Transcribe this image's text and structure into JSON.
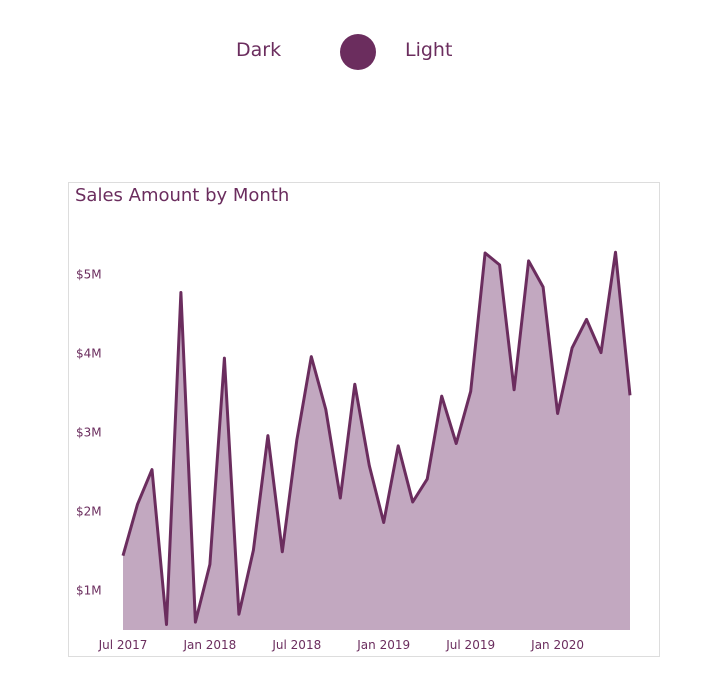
{
  "toggle": {
    "left_label": "Dark",
    "right_label": "Light",
    "state": "light",
    "accent_color": "#6b2d5e"
  },
  "chart_data": {
    "type": "area",
    "title": "Sales Amount by Month",
    "xlabel": "",
    "ylabel": "",
    "colors": {
      "line": "#6b2d5e",
      "fill": "#c2a8c0"
    },
    "grid": false,
    "ylim": [
      500000,
      5650000
    ],
    "y_ticks": [
      1000000,
      2000000,
      3000000,
      4000000,
      5000000
    ],
    "y_tick_labels": [
      "$1M",
      "$2M",
      "$3M",
      "$4M",
      "$5M"
    ],
    "x_tick_labels": [
      "Jul 2017",
      "Jan 2018",
      "Jul 2018",
      "Jan 2019",
      "Jul 2019",
      "Jan 2020"
    ],
    "x_tick_months": [
      "2017-07",
      "2018-01",
      "2018-07",
      "2019-01",
      "2019-07",
      "2020-01"
    ],
    "x": [
      "2017-07",
      "2017-08",
      "2017-09",
      "2017-10",
      "2017-11",
      "2017-12",
      "2018-01",
      "2018-02",
      "2018-03",
      "2018-04",
      "2018-05",
      "2018-06",
      "2018-07",
      "2018-08",
      "2018-09",
      "2018-10",
      "2018-11",
      "2018-12",
      "2019-01",
      "2019-02",
      "2019-03",
      "2019-04",
      "2019-05",
      "2019-06",
      "2019-07",
      "2019-08",
      "2019-09",
      "2019-10",
      "2019-11",
      "2019-12",
      "2020-01",
      "2020-02",
      "2020-03",
      "2020-04",
      "2020-05",
      "2020-06"
    ],
    "series": [
      {
        "values": [
          1440000,
          2090000,
          2530000,
          570000,
          4770000,
          600000,
          1330000,
          3940000,
          700000,
          1510000,
          2960000,
          1490000,
          2900000,
          3960000,
          3290000,
          2170000,
          3610000,
          2580000,
          1860000,
          2830000,
          2120000,
          2410000,
          3460000,
          2860000,
          3520000,
          5270000,
          5120000,
          3540000,
          5170000,
          4840000,
          3240000,
          4070000,
          4430000,
          4010000,
          5280000,
          3470000
        ]
      }
    ]
  }
}
